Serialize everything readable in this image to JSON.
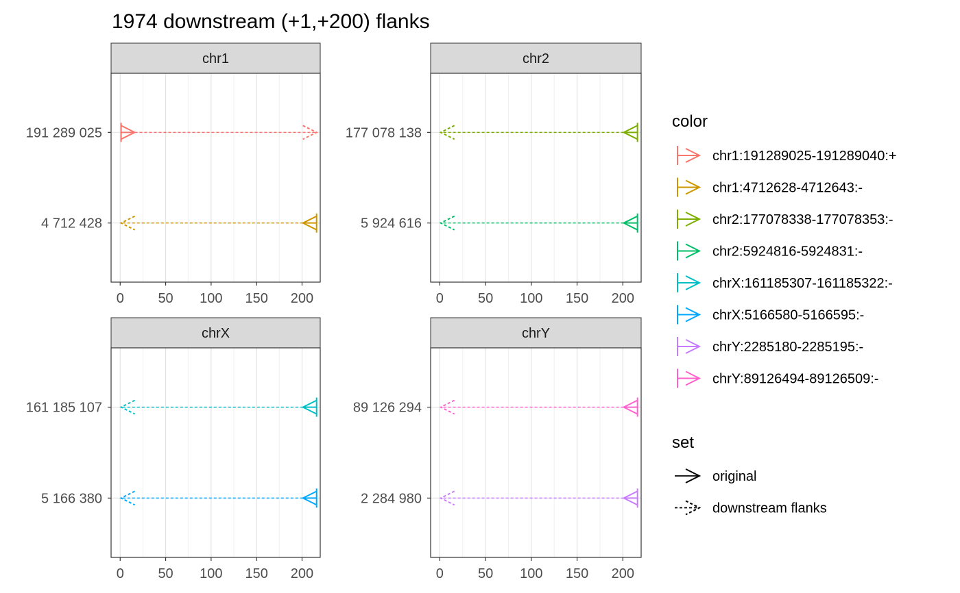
{
  "chart_data": {
    "type": "faceted-segment-arrows",
    "title": "1974 downstream (+1,+200) flanks",
    "xlim": [
      -10,
      220
    ],
    "x_ticks": [
      0,
      50,
      100,
      150,
      200
    ],
    "facets": [
      {
        "name": "chr1",
        "rows": [
          {
            "label": "191 289 025",
            "color_key": "chr1:191289025-191289040:+",
            "original": {
              "from": 1,
              "to": 16
            },
            "flank": {
              "from": 16,
              "to": 216
            }
          },
          {
            "label": "4 712 428",
            "color_key": "chr1:4712628-4712643:-",
            "original": {
              "from": 216,
              "to": 201
            },
            "flank": {
              "from": 201,
              "to": 1
            }
          }
        ]
      },
      {
        "name": "chr2",
        "rows": [
          {
            "label": "177 078 138",
            "color_key": "chr2:177078338-177078353:-",
            "original": {
              "from": 216,
              "to": 201
            },
            "flank": {
              "from": 201,
              "to": 1
            }
          },
          {
            "label": "5 924 616",
            "color_key": "chr2:5924816-5924831:-",
            "original": {
              "from": 216,
              "to": 201
            },
            "flank": {
              "from": 201,
              "to": 1
            }
          }
        ]
      },
      {
        "name": "chrX",
        "rows": [
          {
            "label": "161 185 107",
            "color_key": "chrX:161185307-161185322:-",
            "original": {
              "from": 216,
              "to": 201
            },
            "flank": {
              "from": 201,
              "to": 1
            }
          },
          {
            "label": "5 166 380",
            "color_key": "chrX:5166580-5166595:-",
            "original": {
              "from": 216,
              "to": 201
            },
            "flank": {
              "from": 201,
              "to": 1
            }
          }
        ]
      },
      {
        "name": "chrY",
        "rows": [
          {
            "label": "89 126 294",
            "color_key": "chrY:89126494-89126509:-",
            "original": {
              "from": 216,
              "to": 201
            },
            "flank": {
              "from": 201,
              "to": 1
            }
          },
          {
            "label": "2 284 980",
            "color_key": "chrY:2285180-2285195:-",
            "original": {
              "from": 216,
              "to": 201
            },
            "flank": {
              "from": 201,
              "to": 1
            }
          }
        ]
      }
    ],
    "legend": {
      "placement": "right",
      "color_title": "color",
      "color_entries": [
        {
          "label": "chr1:191289025-191289040:+",
          "color": "#F8766D"
        },
        {
          "label": "chr1:4712628-4712643:-",
          "color": "#CD9600"
        },
        {
          "label": "chr2:177078338-177078353:-",
          "color": "#7CAE00"
        },
        {
          "label": "chr2:5924816-5924831:-",
          "color": "#00BE67"
        },
        {
          "label": "chrX:161185307-161185322:-",
          "color": "#00BFC4"
        },
        {
          "label": "chrX:5166580-5166595:-",
          "color": "#00A9FF"
        },
        {
          "label": "chrY:2285180-2285195:-",
          "color": "#C77CFF"
        },
        {
          "label": "chrY:89126494-89126509:-",
          "color": "#FF61CC"
        }
      ],
      "set_title": "set",
      "set_entries": [
        {
          "label": "original",
          "linetype": "solid"
        },
        {
          "label": "downstream flanks",
          "linetype": "dashed"
        }
      ]
    }
  }
}
